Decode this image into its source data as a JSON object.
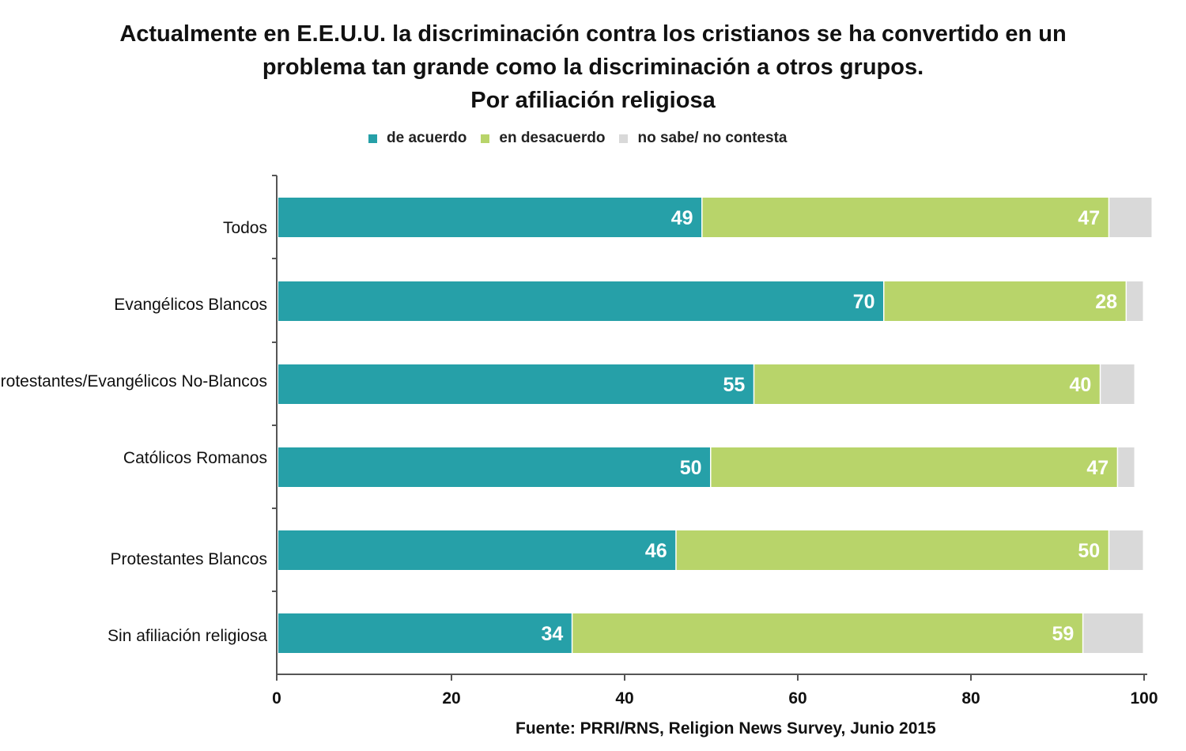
{
  "chart_data": {
    "type": "bar",
    "orientation": "horizontal",
    "stacked": true,
    "title_lines": [
      "Actualmente en E.E.U.U. la discriminación contra los cristianos se ha convertido en un",
      "problema tan grande como la discriminación a otros grupos.",
      "Por afiliación religiosa"
    ],
    "categories": [
      "Todos",
      "Evangélicos Blancos",
      "Protestantes/Evangélicos  No-Blancos",
      "Católicos Romanos",
      "Protestantes Blancos",
      "Sin afiliación religiosa"
    ],
    "series": [
      {
        "name": "de acuerdo",
        "color": "#26a0a8",
        "values": [
          49,
          70,
          55,
          50,
          46,
          34
        ],
        "labels": [
          "49",
          "70",
          "55",
          "50",
          "46",
          "34"
        ]
      },
      {
        "name": "en desacuerdo",
        "color": "#b8d46a",
        "values": [
          47,
          28,
          40,
          47,
          50,
          59
        ],
        "labels": [
          "47",
          "28",
          "40",
          "47",
          "50",
          "59"
        ]
      },
      {
        "name": "no sabe/ no contesta",
        "color": "#d9d9d9",
        "values": [
          5,
          2,
          4,
          2,
          4,
          7
        ],
        "labels": [
          "",
          "",
          "",
          "",
          "",
          ""
        ]
      }
    ],
    "xlim": [
      0,
      100
    ],
    "xticks": [
      "0",
      "20",
      "40",
      "60",
      "80",
      "100"
    ],
    "legend_position": "top",
    "grid": false,
    "source": "Fuente: PRRI/RNS, Religion News Survey, Junio 2015"
  }
}
